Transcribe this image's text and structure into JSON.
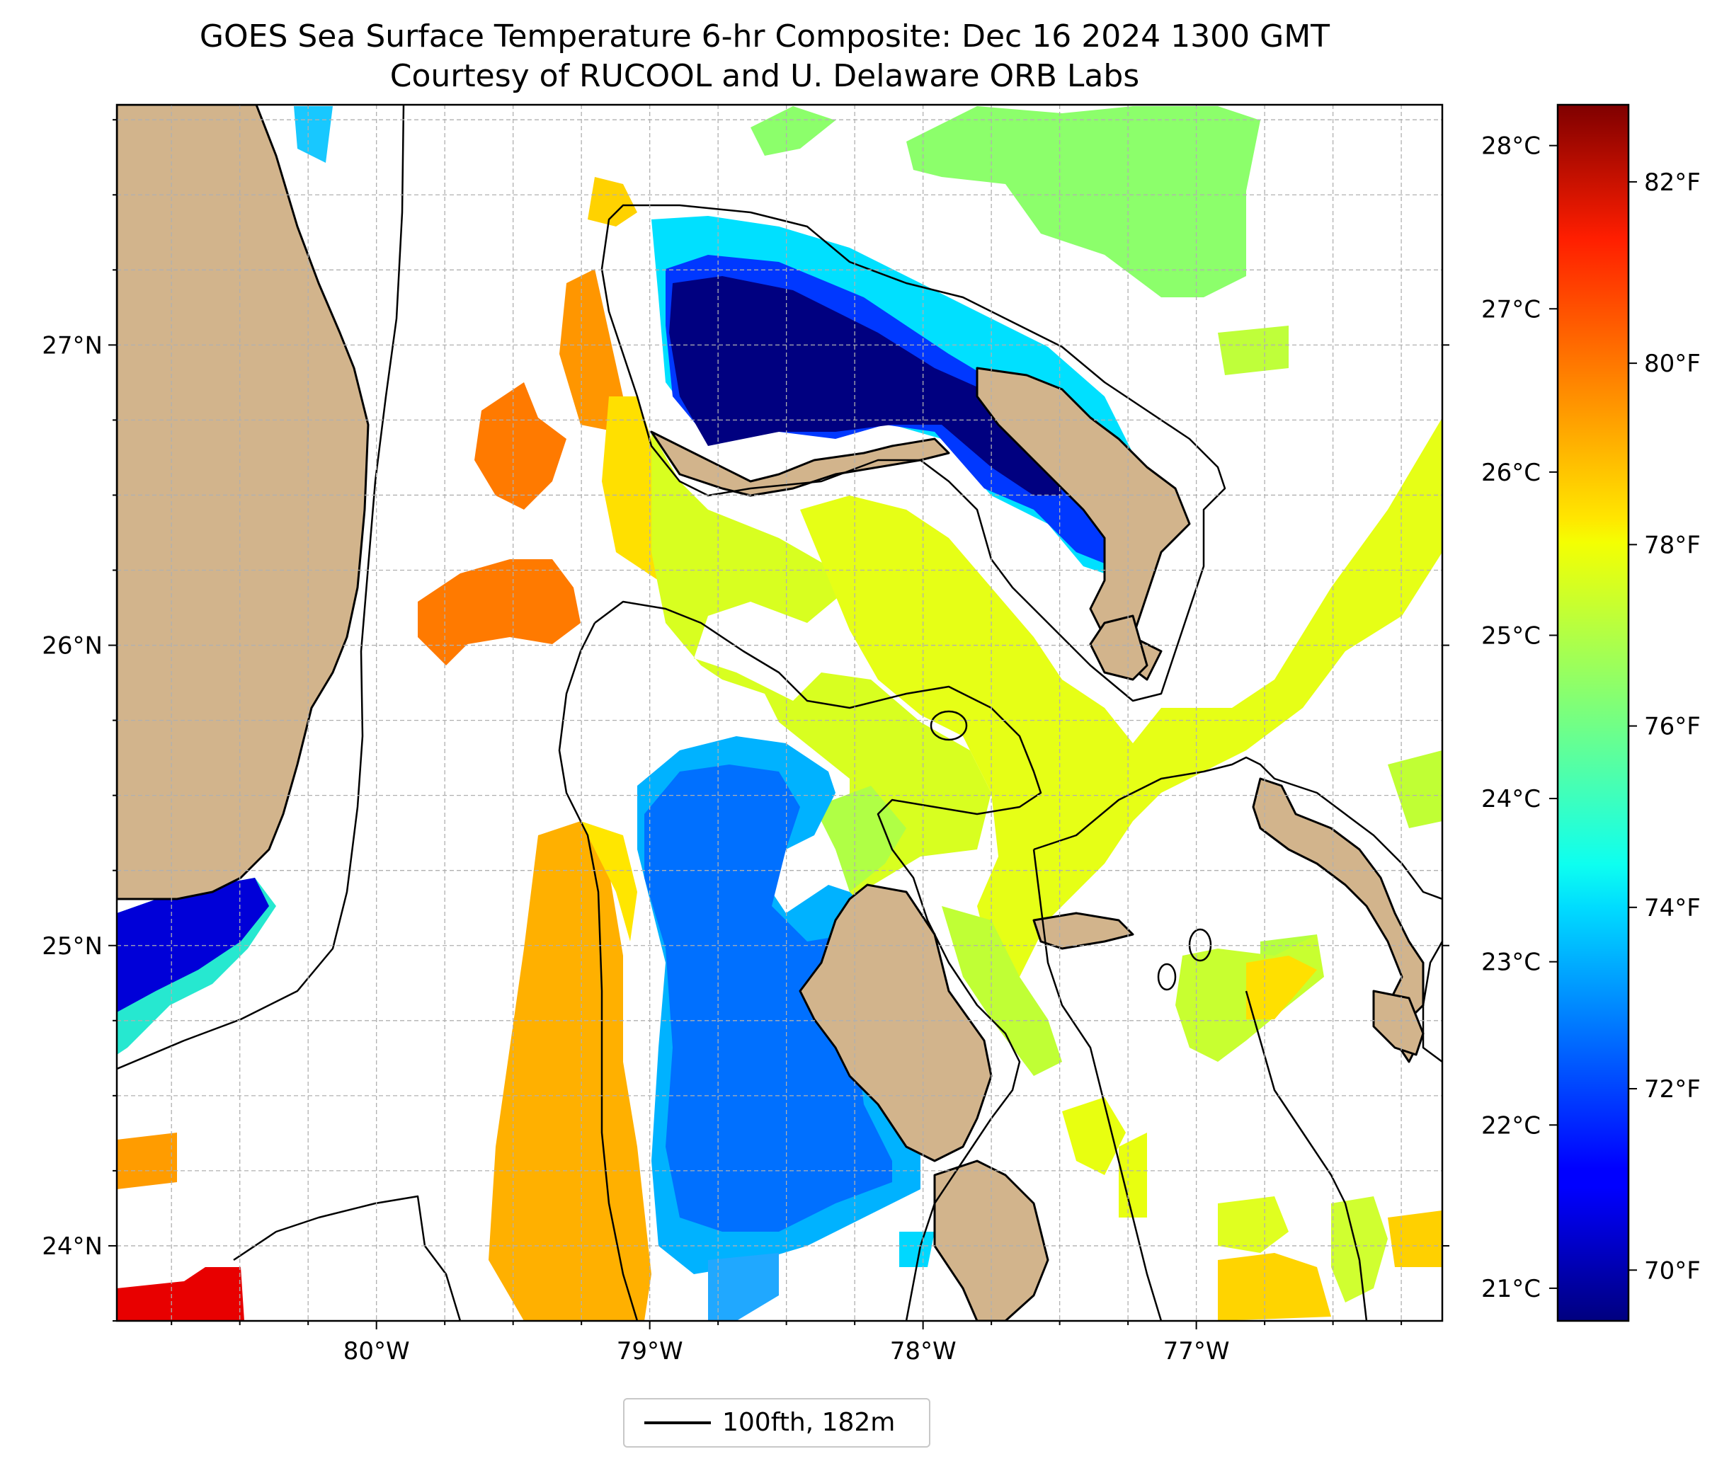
{
  "title": {
    "line1": "GOES Sea Surface Temperature 6-hr Composite: Dec 16 2024 1300 GMT",
    "line2": "Courtesy of RUCOOL and U. Delaware ORB Labs"
  },
  "map": {
    "lon_range": [
      -80.95,
      -76.1
    ],
    "lat_range": [
      23.75,
      27.8
    ],
    "lon_ticks": [
      {
        "value": -80,
        "label": "80°W"
      },
      {
        "value": -79,
        "label": "79°W"
      },
      {
        "value": -78,
        "label": "78°W"
      },
      {
        "value": -77,
        "label": "77°W"
      }
    ],
    "lat_ticks": [
      {
        "value": 27,
        "label": "27°N"
      },
      {
        "value": 26,
        "label": "26°N"
      },
      {
        "value": 25,
        "label": "25°N"
      },
      {
        "value": 24,
        "label": "24°N"
      }
    ],
    "gridlines": "dashed",
    "colors": {
      "land": "#d2b48c",
      "coastline": "#000000",
      "grid": "#b0b0b0"
    }
  },
  "colorbar": {
    "colormap": "jet",
    "celsius_range": [
      20.8,
      28.25
    ],
    "celsius_ticks": [
      {
        "value": 21,
        "label": "21°C"
      },
      {
        "value": 22,
        "label": "22°C"
      },
      {
        "value": 23,
        "label": "23°C"
      },
      {
        "value": 24,
        "label": "24°C"
      },
      {
        "value": 25,
        "label": "25°C"
      },
      {
        "value": 26,
        "label": "26°C"
      },
      {
        "value": 27,
        "label": "27°C"
      },
      {
        "value": 28,
        "label": "28°C"
      }
    ],
    "fahrenheit_ticks": [
      {
        "value": 70,
        "label": "70°F"
      },
      {
        "value": 72,
        "label": "72°F"
      },
      {
        "value": 74,
        "label": "74°F"
      },
      {
        "value": 76,
        "label": "76°F"
      },
      {
        "value": 78,
        "label": "78°F"
      },
      {
        "value": 80,
        "label": "80°F"
      },
      {
        "value": 82,
        "label": "82°F"
      }
    ]
  },
  "legend": {
    "label": "100fth, 182m",
    "line_color": "#000000"
  }
}
